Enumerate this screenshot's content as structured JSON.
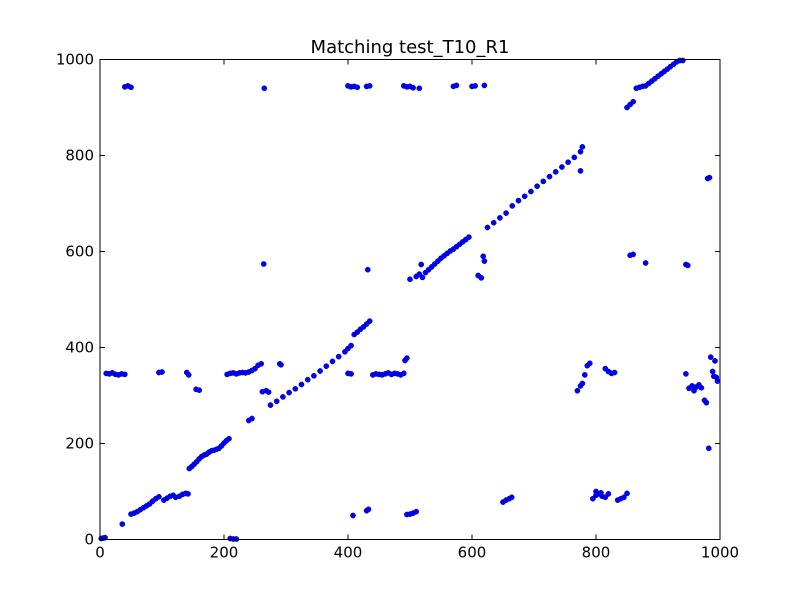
{
  "chart_data": {
    "type": "scatter",
    "title": "Matching test_T10_R1",
    "xlabel": "",
    "ylabel": "",
    "xlim": [
      0,
      1000
    ],
    "ylim": [
      0,
      1000
    ],
    "xticks": [
      "0",
      "200",
      "400",
      "600",
      "800",
      "1000"
    ],
    "yticks": [
      "0",
      "200",
      "400",
      "600",
      "800",
      "1000"
    ],
    "grid": false,
    "marker_color": "#0000ff",
    "marker_edge": "#00008b",
    "series": [
      {
        "points": [
          [
            2,
            2
          ],
          [
            5,
            3
          ],
          [
            8,
            4
          ],
          [
            36,
            32
          ],
          [
            50,
            53
          ],
          [
            55,
            55
          ],
          [
            60,
            58
          ],
          [
            65,
            62
          ],
          [
            70,
            66
          ],
          [
            75,
            70
          ],
          [
            80,
            74
          ],
          [
            85,
            80
          ],
          [
            90,
            85
          ],
          [
            95,
            89
          ],
          [
            103,
            82
          ],
          [
            108,
            86
          ],
          [
            113,
            90
          ],
          [
            118,
            92
          ],
          [
            122,
            88
          ],
          [
            128,
            90
          ],
          [
            133,
            94
          ],
          [
            138,
            96
          ],
          [
            142,
            95
          ],
          [
            144,
            148
          ],
          [
            148,
            152
          ],
          [
            152,
            157
          ],
          [
            156,
            162
          ],
          [
            160,
            168
          ],
          [
            164,
            173
          ],
          [
            168,
            176
          ],
          [
            172,
            178
          ],
          [
            176,
            182
          ],
          [
            180,
            185
          ],
          [
            184,
            186
          ],
          [
            188,
            188
          ],
          [
            192,
            190
          ],
          [
            196,
            195
          ],
          [
            200,
            201
          ],
          [
            204,
            206
          ],
          [
            208,
            210
          ],
          [
            10,
            346
          ],
          [
            15,
            345
          ],
          [
            20,
            347
          ],
          [
            25,
            344
          ],
          [
            30,
            343
          ],
          [
            35,
            345
          ],
          [
            40,
            344
          ],
          [
            95,
            348
          ],
          [
            100,
            349
          ],
          [
            140,
            348
          ],
          [
            143,
            343
          ],
          [
            155,
            313
          ],
          [
            160,
            311
          ],
          [
            205,
            344
          ],
          [
            210,
            346
          ],
          [
            215,
            347
          ],
          [
            220,
            345
          ],
          [
            225,
            347
          ],
          [
            230,
            348
          ],
          [
            235,
            347
          ],
          [
            240,
            349
          ],
          [
            245,
            352
          ],
          [
            250,
            356
          ],
          [
            255,
            363
          ],
          [
            260,
            366
          ],
          [
            240,
            248
          ],
          [
            245,
            252
          ],
          [
            262,
            308
          ],
          [
            268,
            310
          ],
          [
            272,
            307
          ],
          [
            275,
            280
          ],
          [
            285,
            288
          ],
          [
            295,
            297
          ],
          [
            305,
            306
          ],
          [
            315,
            314
          ],
          [
            325,
            323
          ],
          [
            335,
            333
          ],
          [
            345,
            341
          ],
          [
            355,
            351
          ],
          [
            365,
            361
          ],
          [
            375,
            371
          ],
          [
            385,
            381
          ],
          [
            395,
            391
          ],
          [
            400,
            398
          ],
          [
            405,
            404
          ],
          [
            290,
            366
          ],
          [
            292,
            364
          ],
          [
            410,
            427
          ],
          [
            415,
            432
          ],
          [
            420,
            438
          ],
          [
            425,
            443
          ],
          [
            430,
            449
          ],
          [
            435,
            455
          ],
          [
            400,
            346
          ],
          [
            405,
            345
          ],
          [
            440,
            343
          ],
          [
            445,
            345
          ],
          [
            450,
            344
          ],
          [
            455,
            343
          ],
          [
            460,
            345
          ],
          [
            465,
            347
          ],
          [
            470,
            344
          ],
          [
            475,
            346
          ],
          [
            480,
            345
          ],
          [
            485,
            343
          ],
          [
            490,
            346
          ],
          [
            492,
            373
          ],
          [
            495,
            378
          ],
          [
            408,
            50
          ],
          [
            430,
            60
          ],
          [
            433,
            63
          ],
          [
            495,
            52
          ],
          [
            500,
            53
          ],
          [
            505,
            55
          ],
          [
            510,
            58
          ],
          [
            500,
            542
          ],
          [
            510,
            548
          ],
          [
            515,
            553
          ],
          [
            520,
            546
          ],
          [
            525,
            556
          ],
          [
            530,
            562
          ],
          [
            535,
            568
          ],
          [
            540,
            574
          ],
          [
            545,
            580
          ],
          [
            550,
            586
          ],
          [
            555,
            591
          ],
          [
            560,
            596
          ],
          [
            565,
            601
          ],
          [
            570,
            605
          ],
          [
            575,
            610
          ],
          [
            580,
            615
          ],
          [
            585,
            620
          ],
          [
            590,
            625
          ],
          [
            595,
            630
          ],
          [
            518,
            573
          ],
          [
            432,
            562
          ],
          [
            264,
            574
          ],
          [
            610,
            550
          ],
          [
            615,
            545
          ],
          [
            620,
            580
          ],
          [
            618,
            590
          ],
          [
            625,
            650
          ],
          [
            635,
            660
          ],
          [
            645,
            670
          ],
          [
            655,
            680
          ],
          [
            665,
            695
          ],
          [
            675,
            706
          ],
          [
            685,
            715
          ],
          [
            695,
            725
          ],
          [
            705,
            736
          ],
          [
            715,
            746
          ],
          [
            725,
            756
          ],
          [
            735,
            766
          ],
          [
            745,
            776
          ],
          [
            755,
            786
          ],
          [
            765,
            796
          ],
          [
            775,
            808
          ],
          [
            778,
            818
          ],
          [
            775,
            768
          ],
          [
            650,
            78
          ],
          [
            655,
            82
          ],
          [
            660,
            85
          ],
          [
            664,
            88
          ],
          [
            770,
            310
          ],
          [
            775,
            320
          ],
          [
            778,
            325
          ],
          [
            782,
            343
          ],
          [
            786,
            362
          ],
          [
            790,
            367
          ],
          [
            795,
            85
          ],
          [
            800,
            92
          ],
          [
            805,
            95
          ],
          [
            810,
            90
          ],
          [
            815,
            88
          ],
          [
            820,
            95
          ],
          [
            800,
            100
          ],
          [
            808,
            97
          ],
          [
            815,
            356
          ],
          [
            820,
            350
          ],
          [
            825,
            346
          ],
          [
            830,
            348
          ],
          [
            835,
            82
          ],
          [
            840,
            85
          ],
          [
            845,
            88
          ],
          [
            850,
            96
          ],
          [
            855,
            592
          ],
          [
            860,
            594
          ],
          [
            880,
            576
          ],
          [
            850,
            900
          ],
          [
            855,
            906
          ],
          [
            860,
            912
          ],
          [
            865,
            940
          ],
          [
            870,
            942
          ],
          [
            875,
            944
          ],
          [
            880,
            945
          ],
          [
            885,
            950
          ],
          [
            890,
            955
          ],
          [
            895,
            960
          ],
          [
            900,
            965
          ],
          [
            905,
            970
          ],
          [
            910,
            975
          ],
          [
            915,
            980
          ],
          [
            920,
            985
          ],
          [
            925,
            990
          ],
          [
            930,
            995
          ],
          [
            935,
            998
          ],
          [
            940,
            998
          ],
          [
            945,
            573
          ],
          [
            948,
            571
          ],
          [
            945,
            345
          ],
          [
            950,
            315
          ],
          [
            955,
            320
          ],
          [
            958,
            310
          ],
          [
            962,
            318
          ],
          [
            966,
            322
          ],
          [
            970,
            316
          ],
          [
            975,
            290
          ],
          [
            978,
            285
          ],
          [
            982,
            190
          ],
          [
            985,
            380
          ],
          [
            988,
            350
          ],
          [
            990,
            340
          ],
          [
            992,
            372
          ],
          [
            994,
            338
          ],
          [
            996,
            330
          ],
          [
            980,
            752
          ],
          [
            983,
            754
          ],
          [
            40,
            943
          ],
          [
            45,
            945
          ],
          [
            50,
            942
          ],
          [
            265,
            940
          ],
          [
            400,
            945
          ],
          [
            405,
            943
          ],
          [
            410,
            944
          ],
          [
            415,
            942
          ],
          [
            430,
            944
          ],
          [
            435,
            945
          ],
          [
            490,
            945
          ],
          [
            495,
            943
          ],
          [
            500,
            944
          ],
          [
            505,
            941
          ],
          [
            515,
            940
          ],
          [
            570,
            944
          ],
          [
            575,
            946
          ],
          [
            600,
            944
          ],
          [
            605,
            945
          ],
          [
            620,
            946
          ],
          [
            210,
            2
          ],
          [
            215,
            1
          ],
          [
            220,
            1
          ]
        ]
      }
    ]
  }
}
